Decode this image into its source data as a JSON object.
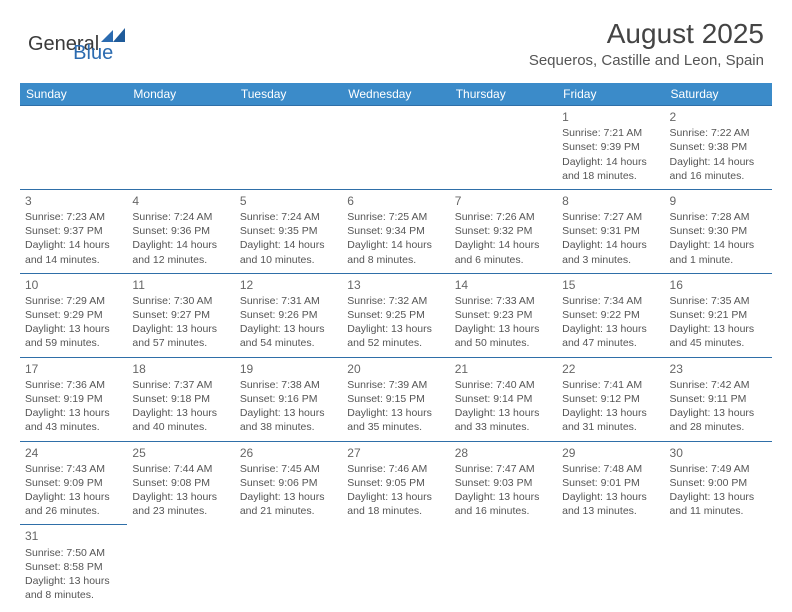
{
  "logo": {
    "general": "General",
    "blue": "Blue"
  },
  "header": {
    "month_title": "August 2025",
    "location": "Sequeros, Castille and Leon, Spain"
  },
  "colors": {
    "header_bg": "#3b8bc9",
    "header_text": "#ffffff",
    "cell_border": "#2f6fa8",
    "text": "#555555",
    "logo_blue": "#2b6bb0"
  },
  "days_of_week": [
    "Sunday",
    "Monday",
    "Tuesday",
    "Wednesday",
    "Thursday",
    "Friday",
    "Saturday"
  ],
  "weeks": [
    [
      null,
      null,
      null,
      null,
      null,
      {
        "n": "1",
        "sr": "Sunrise: 7:21 AM",
        "ss": "Sunset: 9:39 PM",
        "d1": "Daylight: 14 hours",
        "d2": "and 18 minutes."
      },
      {
        "n": "2",
        "sr": "Sunrise: 7:22 AM",
        "ss": "Sunset: 9:38 PM",
        "d1": "Daylight: 14 hours",
        "d2": "and 16 minutes."
      }
    ],
    [
      {
        "n": "3",
        "sr": "Sunrise: 7:23 AM",
        "ss": "Sunset: 9:37 PM",
        "d1": "Daylight: 14 hours",
        "d2": "and 14 minutes."
      },
      {
        "n": "4",
        "sr": "Sunrise: 7:24 AM",
        "ss": "Sunset: 9:36 PM",
        "d1": "Daylight: 14 hours",
        "d2": "and 12 minutes."
      },
      {
        "n": "5",
        "sr": "Sunrise: 7:24 AM",
        "ss": "Sunset: 9:35 PM",
        "d1": "Daylight: 14 hours",
        "d2": "and 10 minutes."
      },
      {
        "n": "6",
        "sr": "Sunrise: 7:25 AM",
        "ss": "Sunset: 9:34 PM",
        "d1": "Daylight: 14 hours",
        "d2": "and 8 minutes."
      },
      {
        "n": "7",
        "sr": "Sunrise: 7:26 AM",
        "ss": "Sunset: 9:32 PM",
        "d1": "Daylight: 14 hours",
        "d2": "and 6 minutes."
      },
      {
        "n": "8",
        "sr": "Sunrise: 7:27 AM",
        "ss": "Sunset: 9:31 PM",
        "d1": "Daylight: 14 hours",
        "d2": "and 3 minutes."
      },
      {
        "n": "9",
        "sr": "Sunrise: 7:28 AM",
        "ss": "Sunset: 9:30 PM",
        "d1": "Daylight: 14 hours",
        "d2": "and 1 minute."
      }
    ],
    [
      {
        "n": "10",
        "sr": "Sunrise: 7:29 AM",
        "ss": "Sunset: 9:29 PM",
        "d1": "Daylight: 13 hours",
        "d2": "and 59 minutes."
      },
      {
        "n": "11",
        "sr": "Sunrise: 7:30 AM",
        "ss": "Sunset: 9:27 PM",
        "d1": "Daylight: 13 hours",
        "d2": "and 57 minutes."
      },
      {
        "n": "12",
        "sr": "Sunrise: 7:31 AM",
        "ss": "Sunset: 9:26 PM",
        "d1": "Daylight: 13 hours",
        "d2": "and 54 minutes."
      },
      {
        "n": "13",
        "sr": "Sunrise: 7:32 AM",
        "ss": "Sunset: 9:25 PM",
        "d1": "Daylight: 13 hours",
        "d2": "and 52 minutes."
      },
      {
        "n": "14",
        "sr": "Sunrise: 7:33 AM",
        "ss": "Sunset: 9:23 PM",
        "d1": "Daylight: 13 hours",
        "d2": "and 50 minutes."
      },
      {
        "n": "15",
        "sr": "Sunrise: 7:34 AM",
        "ss": "Sunset: 9:22 PM",
        "d1": "Daylight: 13 hours",
        "d2": "and 47 minutes."
      },
      {
        "n": "16",
        "sr": "Sunrise: 7:35 AM",
        "ss": "Sunset: 9:21 PM",
        "d1": "Daylight: 13 hours",
        "d2": "and 45 minutes."
      }
    ],
    [
      {
        "n": "17",
        "sr": "Sunrise: 7:36 AM",
        "ss": "Sunset: 9:19 PM",
        "d1": "Daylight: 13 hours",
        "d2": "and 43 minutes."
      },
      {
        "n": "18",
        "sr": "Sunrise: 7:37 AM",
        "ss": "Sunset: 9:18 PM",
        "d1": "Daylight: 13 hours",
        "d2": "and 40 minutes."
      },
      {
        "n": "19",
        "sr": "Sunrise: 7:38 AM",
        "ss": "Sunset: 9:16 PM",
        "d1": "Daylight: 13 hours",
        "d2": "and 38 minutes."
      },
      {
        "n": "20",
        "sr": "Sunrise: 7:39 AM",
        "ss": "Sunset: 9:15 PM",
        "d1": "Daylight: 13 hours",
        "d2": "and 35 minutes."
      },
      {
        "n": "21",
        "sr": "Sunrise: 7:40 AM",
        "ss": "Sunset: 9:14 PM",
        "d1": "Daylight: 13 hours",
        "d2": "and 33 minutes."
      },
      {
        "n": "22",
        "sr": "Sunrise: 7:41 AM",
        "ss": "Sunset: 9:12 PM",
        "d1": "Daylight: 13 hours",
        "d2": "and 31 minutes."
      },
      {
        "n": "23",
        "sr": "Sunrise: 7:42 AM",
        "ss": "Sunset: 9:11 PM",
        "d1": "Daylight: 13 hours",
        "d2": "and 28 minutes."
      }
    ],
    [
      {
        "n": "24",
        "sr": "Sunrise: 7:43 AM",
        "ss": "Sunset: 9:09 PM",
        "d1": "Daylight: 13 hours",
        "d2": "and 26 minutes."
      },
      {
        "n": "25",
        "sr": "Sunrise: 7:44 AM",
        "ss": "Sunset: 9:08 PM",
        "d1": "Daylight: 13 hours",
        "d2": "and 23 minutes."
      },
      {
        "n": "26",
        "sr": "Sunrise: 7:45 AM",
        "ss": "Sunset: 9:06 PM",
        "d1": "Daylight: 13 hours",
        "d2": "and 21 minutes."
      },
      {
        "n": "27",
        "sr": "Sunrise: 7:46 AM",
        "ss": "Sunset: 9:05 PM",
        "d1": "Daylight: 13 hours",
        "d2": "and 18 minutes."
      },
      {
        "n": "28",
        "sr": "Sunrise: 7:47 AM",
        "ss": "Sunset: 9:03 PM",
        "d1": "Daylight: 13 hours",
        "d2": "and 16 minutes."
      },
      {
        "n": "29",
        "sr": "Sunrise: 7:48 AM",
        "ss": "Sunset: 9:01 PM",
        "d1": "Daylight: 13 hours",
        "d2": "and 13 minutes."
      },
      {
        "n": "30",
        "sr": "Sunrise: 7:49 AM",
        "ss": "Sunset: 9:00 PM",
        "d1": "Daylight: 13 hours",
        "d2": "and 11 minutes."
      }
    ],
    [
      {
        "n": "31",
        "sr": "Sunrise: 7:50 AM",
        "ss": "Sunset: 8:58 PM",
        "d1": "Daylight: 13 hours",
        "d2": "and 8 minutes."
      },
      null,
      null,
      null,
      null,
      null,
      null
    ]
  ]
}
